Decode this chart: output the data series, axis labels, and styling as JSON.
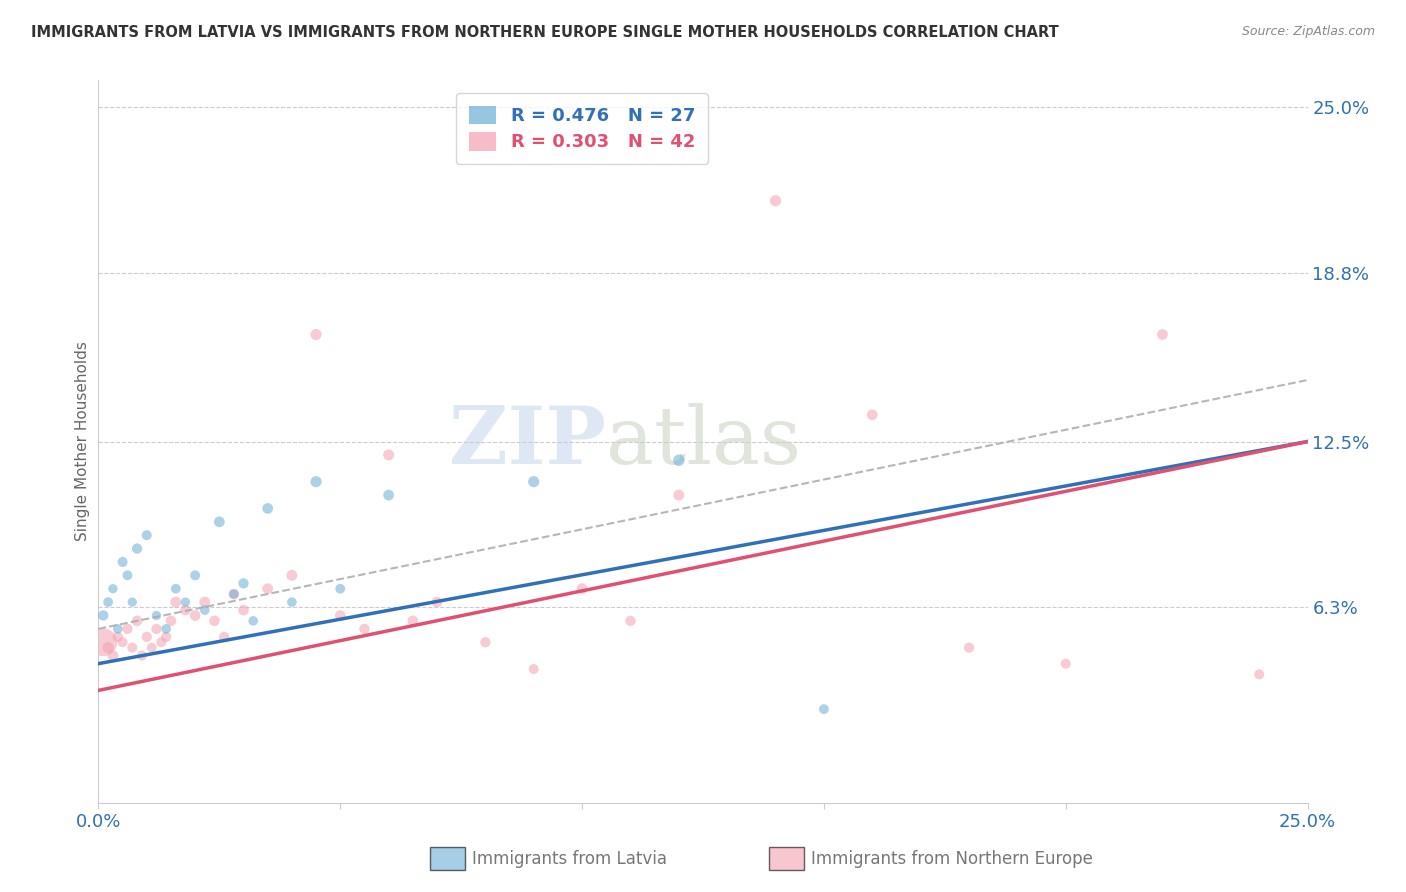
{
  "title": "IMMIGRANTS FROM LATVIA VS IMMIGRANTS FROM NORTHERN EUROPE SINGLE MOTHER HOUSEHOLDS CORRELATION CHART",
  "source": "Source: ZipAtlas.com",
  "xlabel_blue": "Immigrants from Latvia",
  "xlabel_pink": "Immigrants from Northern Europe",
  "ylabel": "Single Mother Households",
  "xlim": [
    0.0,
    0.25
  ],
  "ylim": [
    -0.01,
    0.26
  ],
  "ytick_labels_right": [
    "6.3%",
    "12.5%",
    "18.8%",
    "25.0%"
  ],
  "yticks_right": [
    0.063,
    0.125,
    0.188,
    0.25
  ],
  "legend_blue_R": "R = 0.476",
  "legend_blue_N": "N = 27",
  "legend_pink_R": "R = 0.303",
  "legend_pink_N": "N = 42",
  "blue_color": "#6baed6",
  "pink_color": "#f4a0b0",
  "blue_line_color": "#3070b8",
  "pink_line_color": "#e05070",
  "watermark_zip": "ZIP",
  "watermark_atlas": "atlas",
  "blue_points_x": [
    0.001,
    0.002,
    0.003,
    0.004,
    0.005,
    0.006,
    0.007,
    0.008,
    0.01,
    0.012,
    0.014,
    0.016,
    0.018,
    0.02,
    0.022,
    0.025,
    0.028,
    0.03,
    0.032,
    0.035,
    0.04,
    0.045,
    0.05,
    0.06,
    0.09,
    0.12,
    0.15
  ],
  "blue_points_y": [
    0.06,
    0.065,
    0.07,
    0.055,
    0.08,
    0.075,
    0.065,
    0.085,
    0.09,
    0.06,
    0.055,
    0.07,
    0.065,
    0.075,
    0.062,
    0.095,
    0.068,
    0.072,
    0.058,
    0.1,
    0.065,
    0.11,
    0.07,
    0.105,
    0.11,
    0.118,
    0.025
  ],
  "blue_sizes": [
    55,
    50,
    45,
    48,
    52,
    50,
    45,
    55,
    52,
    45,
    48,
    50,
    45,
    52,
    48,
    60,
    45,
    55,
    48,
    60,
    48,
    65,
    50,
    60,
    65,
    68,
    50
  ],
  "pink_points_x": [
    0.001,
    0.002,
    0.003,
    0.004,
    0.005,
    0.006,
    0.007,
    0.008,
    0.009,
    0.01,
    0.011,
    0.012,
    0.013,
    0.014,
    0.015,
    0.016,
    0.018,
    0.02,
    0.022,
    0.024,
    0.026,
    0.028,
    0.03,
    0.035,
    0.04,
    0.045,
    0.05,
    0.055,
    0.06,
    0.065,
    0.07,
    0.08,
    0.09,
    0.1,
    0.11,
    0.12,
    0.14,
    0.16,
    0.18,
    0.2,
    0.22,
    0.24
  ],
  "pink_points_y": [
    0.05,
    0.048,
    0.045,
    0.052,
    0.05,
    0.055,
    0.048,
    0.058,
    0.045,
    0.052,
    0.048,
    0.055,
    0.05,
    0.052,
    0.058,
    0.065,
    0.062,
    0.06,
    0.065,
    0.058,
    0.052,
    0.068,
    0.062,
    0.07,
    0.075,
    0.165,
    0.06,
    0.055,
    0.12,
    0.058,
    0.065,
    0.05,
    0.04,
    0.07,
    0.058,
    0.105,
    0.215,
    0.135,
    0.048,
    0.042,
    0.165,
    0.038
  ],
  "pink_sizes": [
    400,
    65,
    60,
    55,
    52,
    55,
    52,
    58,
    52,
    55,
    50,
    55,
    52,
    55,
    58,
    62,
    58,
    60,
    62,
    58,
    55,
    60,
    58,
    60,
    62,
    65,
    58,
    55,
    62,
    58,
    60,
    55,
    52,
    60,
    55,
    62,
    65,
    60,
    55,
    52,
    60,
    52
  ],
  "blue_line_y_start": 0.042,
  "blue_line_y_end": 0.125,
  "pink_line_y_start": 0.032,
  "pink_line_y_end": 0.125,
  "dashed_line_y_start": 0.055,
  "dashed_line_y_end": 0.148
}
